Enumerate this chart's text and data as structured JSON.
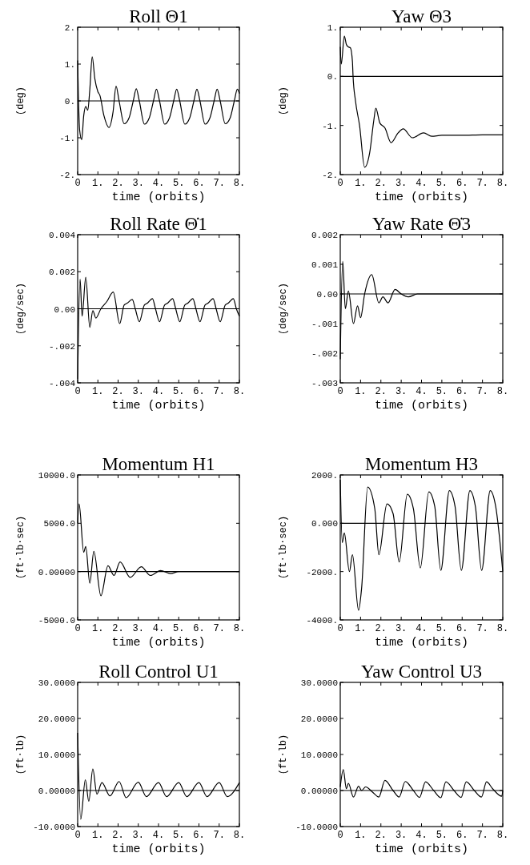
{
  "chart_data": [
    {
      "type": "line",
      "title": "Roll Θ1",
      "xlabel": "time (orbits)",
      "ylabel": "(deg)",
      "xlim": [
        0,
        8
      ],
      "ylim": [
        -2,
        2
      ],
      "xticks": [
        {
          "value": 0,
          "label": "0"
        },
        {
          "value": 1,
          "label": "1."
        },
        {
          "value": 2,
          "label": "2."
        },
        {
          "value": 3,
          "label": "3."
        },
        {
          "value": 4,
          "label": "4."
        },
        {
          "value": 5,
          "label": "5."
        },
        {
          "value": 6,
          "label": "6."
        },
        {
          "value": 7,
          "label": "7."
        },
        {
          "value": 8,
          "label": "8."
        }
      ],
      "yticks": [
        {
          "value": -2,
          "label": "-2."
        },
        {
          "value": -1,
          "label": "-1."
        },
        {
          "value": 0,
          "label": "0."
        },
        {
          "value": 1,
          "label": "1."
        },
        {
          "value": 2,
          "label": "2."
        }
      ],
      "ref_lines": [
        {
          "axis": "y",
          "value": 0,
          "color": "#000000"
        }
      ],
      "x": [
        0,
        0.03,
        0.1,
        0.2,
        0.3,
        0.4,
        0.5,
        0.6,
        0.72,
        0.85,
        1.0,
        1.1,
        1.3,
        1.55,
        1.75,
        1.9,
        2.05,
        2.3,
        2.55,
        2.75,
        2.9,
        3.05,
        3.3,
        3.55,
        3.75,
        3.9,
        4.05,
        4.3,
        4.55,
        4.75,
        4.9,
        5.05,
        5.3,
        5.55,
        5.75,
        5.9,
        6.05,
        6.3,
        6.55,
        6.75,
        6.9,
        7.05,
        7.3,
        7.55,
        7.75,
        7.9,
        8.0
      ],
      "series": [
        {
          "color": "#000000",
          "values": [
            1.1,
            0.3,
            -0.8,
            -1.05,
            -0.4,
            -0.15,
            -0.25,
            0.3,
            1.2,
            0.6,
            0.25,
            0.15,
            -0.4,
            -0.72,
            -0.3,
            0.4,
            0.0,
            -0.62,
            -0.45,
            0.0,
            0.33,
            0.0,
            -0.63,
            -0.45,
            0.0,
            0.32,
            0.0,
            -0.63,
            -0.45,
            0.0,
            0.32,
            0.0,
            -0.63,
            -0.45,
            0.0,
            0.32,
            0.0,
            -0.63,
            -0.45,
            0.0,
            0.32,
            0.0,
            -0.62,
            -0.45,
            0.0,
            0.32,
            0.2
          ]
        }
      ]
    },
    {
      "type": "line",
      "title": "Yaw Θ3",
      "xlabel": "time (orbits)",
      "ylabel": "(deg)",
      "xlim": [
        0,
        8
      ],
      "ylim": [
        -2,
        1
      ],
      "xticks": [
        {
          "value": 0,
          "label": "0"
        },
        {
          "value": 1,
          "label": "1."
        },
        {
          "value": 2,
          "label": "2."
        },
        {
          "value": 3,
          "label": "3."
        },
        {
          "value": 4,
          "label": "4."
        },
        {
          "value": 5,
          "label": "5."
        },
        {
          "value": 6,
          "label": "6."
        },
        {
          "value": 7,
          "label": "7."
        },
        {
          "value": 8,
          "label": "8."
        }
      ],
      "yticks": [
        {
          "value": -2,
          "label": "-2."
        },
        {
          "value": -1,
          "label": "-1."
        },
        {
          "value": 0,
          "label": "0."
        },
        {
          "value": 1,
          "label": "1."
        }
      ],
      "ref_lines": [
        {
          "axis": "y",
          "value": 0,
          "color": "#000000"
        }
      ],
      "x": [
        0,
        0.05,
        0.2,
        0.3,
        0.4,
        0.5,
        0.6,
        0.63,
        0.75,
        0.95,
        1.2,
        1.45,
        1.65,
        1.75,
        1.95,
        2.2,
        2.5,
        2.85,
        3.1,
        3.55,
        4.1,
        4.5,
        5.0,
        6.0,
        7.0,
        8.0
      ],
      "series": [
        {
          "color": "#000000",
          "values": [
            0.6,
            0.25,
            0.82,
            0.65,
            0.6,
            0.58,
            0.3,
            0.0,
            -0.5,
            -1.0,
            -1.85,
            -1.55,
            -0.9,
            -0.65,
            -0.95,
            -1.05,
            -1.35,
            -1.15,
            -1.07,
            -1.25,
            -1.15,
            -1.22,
            -1.2,
            -1.2,
            -1.19,
            -1.19
          ]
        }
      ]
    },
    {
      "type": "line",
      "title": "Roll Rate Θ̇1",
      "xlabel": "time (orbits)",
      "ylabel": "(deg/sec)",
      "xlim": [
        0,
        8
      ],
      "ylim": [
        -0.004,
        0.004
      ],
      "xticks": [
        {
          "value": 0,
          "label": "0"
        },
        {
          "value": 1,
          "label": "1."
        },
        {
          "value": 2,
          "label": "2."
        },
        {
          "value": 3,
          "label": "3."
        },
        {
          "value": 4,
          "label": "4."
        },
        {
          "value": 5,
          "label": "5."
        },
        {
          "value": 6,
          "label": "6."
        },
        {
          "value": 7,
          "label": "7."
        },
        {
          "value": 8,
          "label": "8."
        }
      ],
      "yticks": [
        {
          "value": -0.004,
          "label": "-.004"
        },
        {
          "value": -0.002,
          "label": "-.002"
        },
        {
          "value": 0,
          "label": "0.00"
        },
        {
          "value": 0.002,
          "label": "0.002"
        },
        {
          "value": 0.004,
          "label": "0.004"
        }
      ],
      "ref_lines": [
        {
          "axis": "y",
          "value": 0,
          "color": "#000000"
        }
      ],
      "x": [
        0,
        0.12,
        0.22,
        0.4,
        0.6,
        0.75,
        0.9,
        1.15,
        1.45,
        1.76,
        2.08,
        2.3,
        2.45,
        2.7,
        2.85,
        3.05,
        3.3,
        3.45,
        3.7,
        3.85,
        4.05,
        4.3,
        4.45,
        4.7,
        4.85,
        5.05,
        5.3,
        5.45,
        5.7,
        5.85,
        6.05,
        6.3,
        6.45,
        6.7,
        6.85,
        7.05,
        7.3,
        7.45,
        7.7,
        7.85,
        8.0
      ],
      "series": [
        {
          "color": "#000000",
          "values": [
            -0.0038,
            0.0016,
            -0.0004,
            0.0017,
            -0.001,
            -0.0001,
            -0.0005,
            0.0,
            0.0004,
            0.0009,
            -0.0008,
            0.0002,
            0.0003,
            0.0005,
            0.0,
            -0.0007,
            0.0002,
            0.0003,
            0.00055,
            0.0,
            -0.0007,
            0.0002,
            0.0003,
            0.00055,
            0.0,
            -0.0007,
            0.0002,
            0.0003,
            0.00055,
            0.0,
            -0.0007,
            0.0002,
            0.0003,
            0.00055,
            0.0,
            -0.0007,
            0.0002,
            0.0003,
            0.00055,
            0.0,
            -0.0004
          ]
        }
      ]
    },
    {
      "type": "line",
      "title": "Yaw Rate Θ̇3",
      "xlabel": "time (orbits)",
      "ylabel": "(deg/sec)",
      "xlim": [
        0,
        8
      ],
      "ylim": [
        -0.003,
        0.002
      ],
      "xticks": [
        {
          "value": 0,
          "label": "0"
        },
        {
          "value": 1,
          "label": "1."
        },
        {
          "value": 2,
          "label": "2."
        },
        {
          "value": 3,
          "label": "3."
        },
        {
          "value": 4,
          "label": "4."
        },
        {
          "value": 5,
          "label": "5."
        },
        {
          "value": 6,
          "label": "6."
        },
        {
          "value": 7,
          "label": "7."
        },
        {
          "value": 8,
          "label": "8."
        }
      ],
      "yticks": [
        {
          "value": -0.003,
          "label": "-.003"
        },
        {
          "value": -0.002,
          "label": "-.002"
        },
        {
          "value": -0.001,
          "label": "-.001"
        },
        {
          "value": 0,
          "label": "0.00"
        },
        {
          "value": 0.001,
          "label": "0.001"
        },
        {
          "value": 0.002,
          "label": "0.002"
        }
      ],
      "ref_lines": [
        {
          "axis": "y",
          "value": 0,
          "color": "#000000"
        }
      ],
      "x": [
        0,
        0.12,
        0.25,
        0.4,
        0.65,
        0.85,
        1.0,
        1.2,
        1.55,
        1.9,
        2.1,
        2.35,
        2.7,
        3.0,
        3.35,
        3.8,
        4.4,
        5.0,
        6.0,
        8.0
      ],
      "series": [
        {
          "color": "#000000",
          "values": [
            -0.0022,
            0.0011,
            -0.0005,
            0.0001,
            -0.001,
            -0.0004,
            -0.0008,
            0.0,
            0.00065,
            -0.0003,
            -0.0001,
            -0.0003,
            0.00015,
            0.0,
            -0.0001,
            0.0,
            0.0,
            0.0,
            0.0,
            0.0
          ]
        }
      ]
    },
    {
      "type": "line",
      "title": "Momentum H1",
      "xlabel": "time (orbits)",
      "ylabel": "(ft·lb·sec)",
      "xlim": [
        0,
        8
      ],
      "ylim": [
        -5000,
        10000
      ],
      "xticks": [
        {
          "value": 0,
          "label": "0"
        },
        {
          "value": 1,
          "label": "1."
        },
        {
          "value": 2,
          "label": "2."
        },
        {
          "value": 3,
          "label": "3."
        },
        {
          "value": 4,
          "label": "4."
        },
        {
          "value": 5,
          "label": "5."
        },
        {
          "value": 6,
          "label": "6."
        },
        {
          "value": 7,
          "label": "7."
        },
        {
          "value": 8,
          "label": "8."
        }
      ],
      "yticks": [
        {
          "value": -5000,
          "label": "-5000.0"
        },
        {
          "value": 0,
          "label": "0.00000"
        },
        {
          "value": 5000,
          "label": "5000.0"
        },
        {
          "value": 10000,
          "label": "10000.0"
        }
      ],
      "ref_lines": [
        {
          "axis": "y",
          "value": 0,
          "color": "#000000"
        }
      ],
      "x": [
        0,
        0.07,
        0.3,
        0.4,
        0.6,
        0.8,
        1.15,
        1.5,
        1.8,
        2.1,
        2.6,
        3.15,
        3.6,
        4.1,
        4.6,
        5.0,
        6.0,
        8.0
      ],
      "series": [
        {
          "color": "#000000",
          "values": [
            5000,
            7000,
            2000,
            2600,
            -1200,
            2100,
            -2500,
            600,
            -400,
            1000,
            -600,
            500,
            -400,
            100,
            -200,
            0,
            0,
            0
          ]
        }
      ]
    },
    {
      "type": "line",
      "title": "Momentum H3",
      "xlabel": "time (orbits)",
      "ylabel": "(ft·lb·sec)",
      "xlim": [
        0,
        8
      ],
      "ylim": [
        -4000,
        2000
      ],
      "xticks": [
        {
          "value": 0,
          "label": "0"
        },
        {
          "value": 1,
          "label": "1."
        },
        {
          "value": 2,
          "label": "2."
        },
        {
          "value": 3,
          "label": "3."
        },
        {
          "value": 4,
          "label": "4."
        },
        {
          "value": 5,
          "label": "5."
        },
        {
          "value": 6,
          "label": "6."
        },
        {
          "value": 7,
          "label": "7."
        },
        {
          "value": 8,
          "label": "8."
        }
      ],
      "yticks": [
        {
          "value": -4000,
          "label": "-4000."
        },
        {
          "value": -2000,
          "label": "-2000."
        },
        {
          "value": 0,
          "label": "0.000"
        },
        {
          "value": 2000,
          "label": "2000."
        }
      ],
      "ref_lines": [
        {
          "axis": "y",
          "value": 0,
          "color": "#000000"
        }
      ],
      "x": [
        0,
        0.1,
        0.2,
        0.45,
        0.6,
        0.9,
        1.05,
        1.35,
        1.7,
        1.9,
        2.3,
        2.6,
        2.9,
        3.3,
        3.6,
        3.94,
        4.36,
        4.65,
        4.95,
        5.37,
        5.65,
        5.96,
        6.38,
        6.65,
        6.96,
        7.38,
        7.65,
        8.0
      ],
      "series": [
        {
          "color": "#000000",
          "values": [
            1800,
            -800,
            -400,
            -2000,
            -1300,
            -3600,
            -2700,
            1500,
            600,
            -1300,
            800,
            400,
            -1600,
            1200,
            600,
            -1850,
            1300,
            700,
            -1950,
            1350,
            700,
            -1950,
            1350,
            700,
            -1950,
            1350,
            700,
            -2000
          ]
        }
      ]
    },
    {
      "type": "line",
      "title": "Roll Control U1",
      "xlabel": "time (orbits)",
      "ylabel": "(ft·lb)",
      "xlim": [
        0,
        8
      ],
      "ylim": [
        -10,
        30
      ],
      "xticks": [
        {
          "value": 0,
          "label": "0"
        },
        {
          "value": 1,
          "label": "1."
        },
        {
          "value": 2,
          "label": "2."
        },
        {
          "value": 3,
          "label": "3."
        },
        {
          "value": 4,
          "label": "4."
        },
        {
          "value": 5,
          "label": "5."
        },
        {
          "value": 6,
          "label": "6."
        },
        {
          "value": 7,
          "label": "7."
        },
        {
          "value": 8,
          "label": "8."
        }
      ],
      "yticks": [
        {
          "value": -10,
          "label": "-10.0000"
        },
        {
          "value": 0,
          "label": "0.00000"
        },
        {
          "value": 10,
          "label": "10.0000"
        },
        {
          "value": 20,
          "label": "20.0000"
        },
        {
          "value": 30,
          "label": "30.0000"
        }
      ],
      "ref_lines": [
        {
          "axis": "y",
          "value": 0,
          "color": "#000000"
        }
      ],
      "x": [
        0,
        0.15,
        0.38,
        0.55,
        0.75,
        0.95,
        1.2,
        1.6,
        2.05,
        2.4,
        3.0,
        3.4,
        4.0,
        4.4,
        5.0,
        5.4,
        6.0,
        6.4,
        7.0,
        7.4,
        8.0
      ],
      "series": [
        {
          "color": "#000000",
          "values": [
            16,
            -8,
            3,
            -3,
            6,
            -1,
            2.2,
            -1.5,
            2.5,
            -2,
            2.3,
            -1.7,
            2.2,
            -1.7,
            2.2,
            -1.7,
            2.2,
            -1.7,
            2.2,
            -1.7,
            2.2
          ]
        }
      ]
    },
    {
      "type": "line",
      "title": "Yaw Control U3",
      "xlabel": "time (orbits)",
      "ylabel": "(ft·lb)",
      "xlim": [
        0,
        8
      ],
      "ylim": [
        -10,
        30
      ],
      "xticks": [
        {
          "value": 0,
          "label": "0"
        },
        {
          "value": 1,
          "label": "1."
        },
        {
          "value": 2,
          "label": "2."
        },
        {
          "value": 3,
          "label": "3."
        },
        {
          "value": 4,
          "label": "4."
        },
        {
          "value": 5,
          "label": "5."
        },
        {
          "value": 6,
          "label": "6."
        },
        {
          "value": 7,
          "label": "7."
        },
        {
          "value": 8,
          "label": "8."
        }
      ],
      "yticks": [
        {
          "value": -10,
          "label": "-10.0000"
        },
        {
          "value": 0,
          "label": "0.00000"
        },
        {
          "value": 10,
          "label": "10.0000"
        },
        {
          "value": 20,
          "label": "20.0000"
        },
        {
          "value": 30,
          "label": "30.0000"
        }
      ],
      "ref_lines": [
        {
          "axis": "y",
          "value": 0,
          "color": "#000000"
        }
      ],
      "x": [
        0,
        0.15,
        0.3,
        0.4,
        0.65,
        0.9,
        1.05,
        1.25,
        1.6,
        1.9,
        2.2,
        2.6,
        2.9,
        3.2,
        3.6,
        3.9,
        4.2,
        4.6,
        4.95,
        5.2,
        5.6,
        5.95,
        6.2,
        6.6,
        6.95,
        7.2,
        7.5,
        7.95,
        8.0
      ],
      "series": [
        {
          "color": "#000000",
          "values": [
            1,
            5.8,
            0.5,
            2,
            -1.8,
            1.2,
            0,
            1,
            -0.5,
            -1.8,
            2.8,
            0,
            -1.8,
            2.5,
            0,
            -1.9,
            2.4,
            0,
            -2,
            2.4,
            0,
            -1.9,
            2.4,
            0,
            -1.8,
            2.4,
            0.5,
            -1.6,
            0
          ]
        }
      ]
    }
  ]
}
